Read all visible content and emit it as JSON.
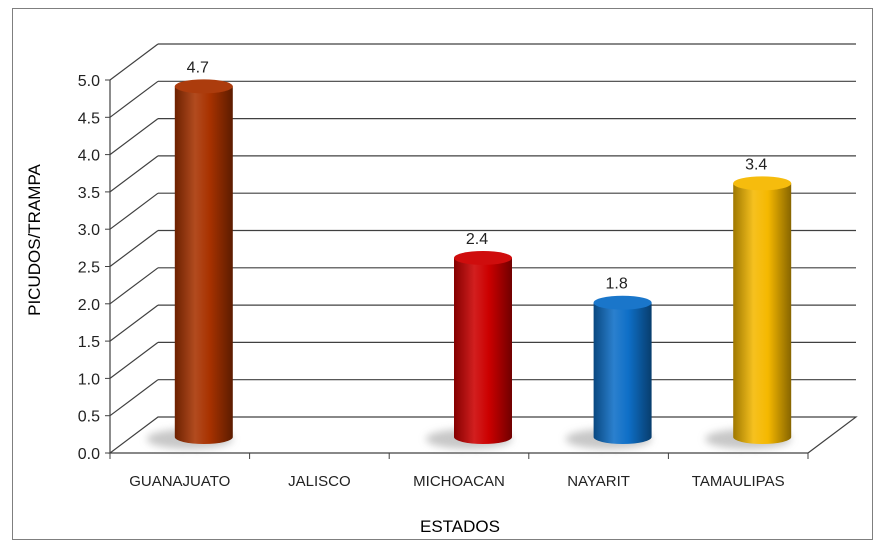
{
  "chart_data": {
    "type": "bar",
    "title": "",
    "xlabel": "ESTADOS",
    "ylabel": "PICUDOS/TRAMPA",
    "categories": [
      "GUANAJUATO",
      "JALISCO",
      "MICHOACAN",
      "NAYARIT",
      "TAMAULIPAS"
    ],
    "values": [
      4.7,
      0,
      2.4,
      1.8,
      3.4
    ],
    "data_labels": [
      "4.7",
      "",
      "2.4",
      "1.8",
      "3.4"
    ],
    "colors": [
      "#a83200",
      "#cccccc",
      "#cc0000",
      "#0e6fc7",
      "#f5b800"
    ],
    "ylim": [
      0,
      5
    ],
    "yticks": [
      "0.0",
      "0.5",
      "1.0",
      "1.5",
      "2.0",
      "2.5",
      "3.0",
      "3.5",
      "4.0",
      "4.5",
      "5.0"
    ],
    "grid": true,
    "legend": "none"
  }
}
